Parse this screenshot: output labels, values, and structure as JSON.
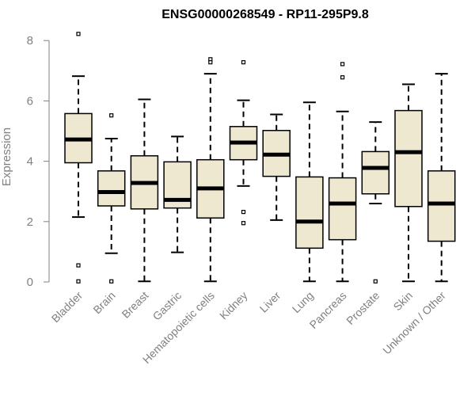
{
  "colors": {
    "box_fill": "#efe8d0",
    "box_stroke": "#000000",
    "axis": "#808080",
    "title": "#000000"
  },
  "chart_data": {
    "type": "box",
    "title": "ENSG00000268549 - RP11-295P9.8",
    "xlabel": "",
    "ylabel": "Expression",
    "ylim": [
      0,
      8.2
    ],
    "yticks": [
      0,
      2,
      4,
      6,
      8
    ],
    "ytick_labels": [
      "0",
      "2",
      "4",
      "6",
      "8"
    ],
    "grid": false,
    "categories": [
      "Bladder",
      "Brain",
      "Breast",
      "Gastric",
      "Hematopoietic cells",
      "Kidney",
      "Liver",
      "Lung",
      "Pancreas",
      "Prostate",
      "Skin",
      "Unknown / Other"
    ],
    "boxes": [
      {
        "category": "Bladder",
        "whisker_low": 2.15,
        "q1": 3.95,
        "median": 4.72,
        "q3": 5.58,
        "whisker_high": 6.82,
        "outliers": [
          8.22,
          0.55,
          0.02
        ]
      },
      {
        "category": "Brain",
        "whisker_low": 0.95,
        "q1": 2.52,
        "median": 2.98,
        "q3": 3.68,
        "whisker_high": 4.75,
        "outliers": [
          5.52,
          0.02
        ]
      },
      {
        "category": "Breast",
        "whisker_low": 0.02,
        "q1": 2.42,
        "median": 3.28,
        "q3": 4.18,
        "whisker_high": 6.05,
        "outliers": []
      },
      {
        "category": "Gastric",
        "whisker_low": 0.98,
        "q1": 2.45,
        "median": 2.72,
        "q3": 3.98,
        "whisker_high": 4.82,
        "outliers": []
      },
      {
        "category": "Hematopoietic cells",
        "whisker_low": 0.02,
        "q1": 2.12,
        "median": 3.1,
        "q3": 4.05,
        "whisker_high": 6.9,
        "outliers": [
          7.38,
          7.28
        ]
      },
      {
        "category": "Kidney",
        "whisker_low": 3.18,
        "q1": 4.05,
        "median": 4.62,
        "q3": 5.15,
        "whisker_high": 6.02,
        "outliers": [
          7.28,
          2.32,
          1.95
        ]
      },
      {
        "category": "Liver",
        "whisker_low": 2.05,
        "q1": 3.5,
        "median": 4.22,
        "q3": 5.02,
        "whisker_high": 5.55,
        "outliers": []
      },
      {
        "category": "Lung",
        "whisker_low": 0.02,
        "q1": 1.12,
        "median": 2.0,
        "q3": 3.48,
        "whisker_high": 5.95,
        "outliers": []
      },
      {
        "category": "Pancreas",
        "whisker_low": 0.02,
        "q1": 1.4,
        "median": 2.6,
        "q3": 3.45,
        "whisker_high": 5.65,
        "outliers": [
          7.22,
          6.78
        ]
      },
      {
        "category": "Prostate",
        "whisker_low": 2.6,
        "q1": 2.92,
        "median": 3.78,
        "q3": 4.32,
        "whisker_high": 5.3,
        "outliers": [
          0.02
        ]
      },
      {
        "category": "Skin",
        "whisker_low": 0.02,
        "q1": 2.5,
        "median": 4.3,
        "q3": 5.68,
        "whisker_high": 6.55,
        "outliers": []
      },
      {
        "category": "Unknown / Other",
        "whisker_low": 0.02,
        "q1": 1.35,
        "median": 2.6,
        "q3": 3.68,
        "whisker_high": 6.9,
        "outliers": []
      }
    ]
  }
}
